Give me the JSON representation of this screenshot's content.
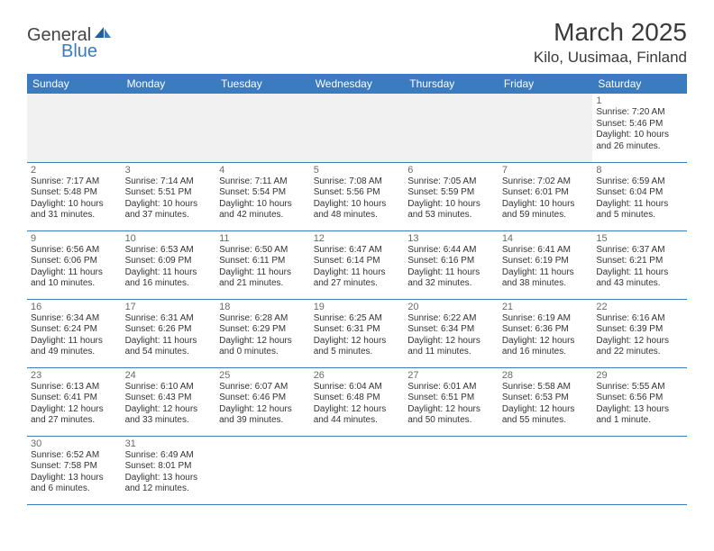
{
  "brand": {
    "name1": "General",
    "name2": "Blue"
  },
  "title": "March 2025",
  "location": "Kilo, Uusimaa, Finland",
  "colors": {
    "header_bg": "#3b7bbf",
    "header_text": "#ffffff",
    "border": "#3b7bbf",
    "logo_blue": "#3b7bbf",
    "body_text": "#333333",
    "daynum": "#6a6a6a",
    "empty_bg": "#f1f1f1"
  },
  "day_headers": [
    "Sunday",
    "Monday",
    "Tuesday",
    "Wednesday",
    "Thursday",
    "Friday",
    "Saturday"
  ],
  "weeks": [
    [
      null,
      null,
      null,
      null,
      null,
      null,
      {
        "n": "1",
        "sr": "Sunrise: 7:20 AM",
        "ss": "Sunset: 5:46 PM",
        "d1": "Daylight: 10 hours",
        "d2": "and 26 minutes."
      }
    ],
    [
      {
        "n": "2",
        "sr": "Sunrise: 7:17 AM",
        "ss": "Sunset: 5:48 PM",
        "d1": "Daylight: 10 hours",
        "d2": "and 31 minutes."
      },
      {
        "n": "3",
        "sr": "Sunrise: 7:14 AM",
        "ss": "Sunset: 5:51 PM",
        "d1": "Daylight: 10 hours",
        "d2": "and 37 minutes."
      },
      {
        "n": "4",
        "sr": "Sunrise: 7:11 AM",
        "ss": "Sunset: 5:54 PM",
        "d1": "Daylight: 10 hours",
        "d2": "and 42 minutes."
      },
      {
        "n": "5",
        "sr": "Sunrise: 7:08 AM",
        "ss": "Sunset: 5:56 PM",
        "d1": "Daylight: 10 hours",
        "d2": "and 48 minutes."
      },
      {
        "n": "6",
        "sr": "Sunrise: 7:05 AM",
        "ss": "Sunset: 5:59 PM",
        "d1": "Daylight: 10 hours",
        "d2": "and 53 minutes."
      },
      {
        "n": "7",
        "sr": "Sunrise: 7:02 AM",
        "ss": "Sunset: 6:01 PM",
        "d1": "Daylight: 10 hours",
        "d2": "and 59 minutes."
      },
      {
        "n": "8",
        "sr": "Sunrise: 6:59 AM",
        "ss": "Sunset: 6:04 PM",
        "d1": "Daylight: 11 hours",
        "d2": "and 5 minutes."
      }
    ],
    [
      {
        "n": "9",
        "sr": "Sunrise: 6:56 AM",
        "ss": "Sunset: 6:06 PM",
        "d1": "Daylight: 11 hours",
        "d2": "and 10 minutes."
      },
      {
        "n": "10",
        "sr": "Sunrise: 6:53 AM",
        "ss": "Sunset: 6:09 PM",
        "d1": "Daylight: 11 hours",
        "d2": "and 16 minutes."
      },
      {
        "n": "11",
        "sr": "Sunrise: 6:50 AM",
        "ss": "Sunset: 6:11 PM",
        "d1": "Daylight: 11 hours",
        "d2": "and 21 minutes."
      },
      {
        "n": "12",
        "sr": "Sunrise: 6:47 AM",
        "ss": "Sunset: 6:14 PM",
        "d1": "Daylight: 11 hours",
        "d2": "and 27 minutes."
      },
      {
        "n": "13",
        "sr": "Sunrise: 6:44 AM",
        "ss": "Sunset: 6:16 PM",
        "d1": "Daylight: 11 hours",
        "d2": "and 32 minutes."
      },
      {
        "n": "14",
        "sr": "Sunrise: 6:41 AM",
        "ss": "Sunset: 6:19 PM",
        "d1": "Daylight: 11 hours",
        "d2": "and 38 minutes."
      },
      {
        "n": "15",
        "sr": "Sunrise: 6:37 AM",
        "ss": "Sunset: 6:21 PM",
        "d1": "Daylight: 11 hours",
        "d2": "and 43 minutes."
      }
    ],
    [
      {
        "n": "16",
        "sr": "Sunrise: 6:34 AM",
        "ss": "Sunset: 6:24 PM",
        "d1": "Daylight: 11 hours",
        "d2": "and 49 minutes."
      },
      {
        "n": "17",
        "sr": "Sunrise: 6:31 AM",
        "ss": "Sunset: 6:26 PM",
        "d1": "Daylight: 11 hours",
        "d2": "and 54 minutes."
      },
      {
        "n": "18",
        "sr": "Sunrise: 6:28 AM",
        "ss": "Sunset: 6:29 PM",
        "d1": "Daylight: 12 hours",
        "d2": "and 0 minutes."
      },
      {
        "n": "19",
        "sr": "Sunrise: 6:25 AM",
        "ss": "Sunset: 6:31 PM",
        "d1": "Daylight: 12 hours",
        "d2": "and 5 minutes."
      },
      {
        "n": "20",
        "sr": "Sunrise: 6:22 AM",
        "ss": "Sunset: 6:34 PM",
        "d1": "Daylight: 12 hours",
        "d2": "and 11 minutes."
      },
      {
        "n": "21",
        "sr": "Sunrise: 6:19 AM",
        "ss": "Sunset: 6:36 PM",
        "d1": "Daylight: 12 hours",
        "d2": "and 16 minutes."
      },
      {
        "n": "22",
        "sr": "Sunrise: 6:16 AM",
        "ss": "Sunset: 6:39 PM",
        "d1": "Daylight: 12 hours",
        "d2": "and 22 minutes."
      }
    ],
    [
      {
        "n": "23",
        "sr": "Sunrise: 6:13 AM",
        "ss": "Sunset: 6:41 PM",
        "d1": "Daylight: 12 hours",
        "d2": "and 27 minutes."
      },
      {
        "n": "24",
        "sr": "Sunrise: 6:10 AM",
        "ss": "Sunset: 6:43 PM",
        "d1": "Daylight: 12 hours",
        "d2": "and 33 minutes."
      },
      {
        "n": "25",
        "sr": "Sunrise: 6:07 AM",
        "ss": "Sunset: 6:46 PM",
        "d1": "Daylight: 12 hours",
        "d2": "and 39 minutes."
      },
      {
        "n": "26",
        "sr": "Sunrise: 6:04 AM",
        "ss": "Sunset: 6:48 PM",
        "d1": "Daylight: 12 hours",
        "d2": "and 44 minutes."
      },
      {
        "n": "27",
        "sr": "Sunrise: 6:01 AM",
        "ss": "Sunset: 6:51 PM",
        "d1": "Daylight: 12 hours",
        "d2": "and 50 minutes."
      },
      {
        "n": "28",
        "sr": "Sunrise: 5:58 AM",
        "ss": "Sunset: 6:53 PM",
        "d1": "Daylight: 12 hours",
        "d2": "and 55 minutes."
      },
      {
        "n": "29",
        "sr": "Sunrise: 5:55 AM",
        "ss": "Sunset: 6:56 PM",
        "d1": "Daylight: 13 hours",
        "d2": "and 1 minute."
      }
    ],
    [
      {
        "n": "30",
        "sr": "Sunrise: 6:52 AM",
        "ss": "Sunset: 7:58 PM",
        "d1": "Daylight: 13 hours",
        "d2": "and 6 minutes."
      },
      {
        "n": "31",
        "sr": "Sunrise: 6:49 AM",
        "ss": "Sunset: 8:01 PM",
        "d1": "Daylight: 13 hours",
        "d2": "and 12 minutes."
      },
      null,
      null,
      null,
      null,
      null
    ]
  ]
}
